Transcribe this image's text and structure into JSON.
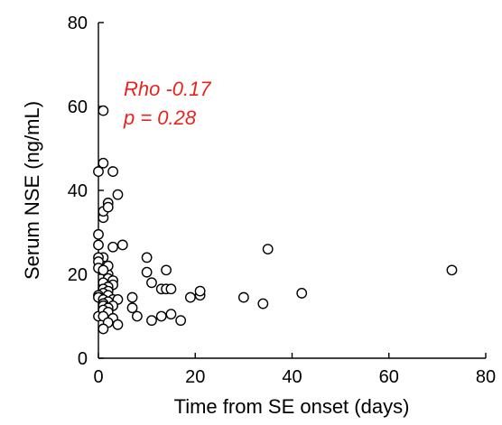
{
  "chart_data": {
    "type": "scatter",
    "title": "",
    "xlabel": "Time from SE onset (days)",
    "ylabel": "Serum NSE (ng/mL)",
    "xlim": [
      0,
      80
    ],
    "ylim": [
      0,
      80
    ],
    "xticks": [
      "0",
      "20",
      "40",
      "60",
      "80"
    ],
    "yticks": [
      "0",
      "20",
      "40",
      "60",
      "80"
    ],
    "grid": false,
    "legend": "none",
    "marker": "open-circle",
    "annotations": [
      {
        "text": "Rho -0.17",
        "color": "#e8241c"
      },
      {
        "text": "p = 0.28",
        "color": "#e8241c"
      }
    ],
    "series": [
      {
        "x": [
          1,
          0,
          1,
          0,
          0,
          1,
          3,
          1,
          4,
          2,
          2,
          1,
          1,
          1,
          0,
          0,
          0,
          2,
          2,
          1,
          2,
          3,
          1,
          3,
          2,
          1,
          2,
          1,
          0,
          2,
          0,
          1,
          3,
          4,
          2,
          1,
          1,
          1,
          0,
          3,
          2,
          1,
          2,
          1,
          3,
          2,
          4,
          1,
          5,
          3,
          7,
          7,
          8,
          10,
          10,
          11,
          11,
          13,
          13,
          14,
          14,
          15,
          15,
          17,
          19,
          21,
          21,
          30,
          34,
          35,
          42,
          73
        ],
        "y": [
          59,
          44.5,
          46.5,
          27,
          29.5,
          33.5,
          44.5,
          35,
          39,
          37,
          36,
          22,
          24,
          22,
          24,
          23,
          21.5,
          20,
          22,
          21,
          19,
          18.5,
          18,
          17.5,
          17,
          16.5,
          16,
          15.5,
          15,
          15,
          14.5,
          14,
          14,
          14,
          13.5,
          13,
          13,
          12.5,
          10,
          12.5,
          12,
          11.5,
          11,
          10,
          9.5,
          8.5,
          8,
          7,
          27,
          26.5,
          14.5,
          12,
          10,
          24,
          20.5,
          18,
          9,
          16.5,
          10,
          21,
          16.5,
          10.5,
          16.5,
          9,
          14.5,
          15,
          16,
          14.5,
          13,
          26,
          15.5,
          21
        ]
      }
    ]
  }
}
